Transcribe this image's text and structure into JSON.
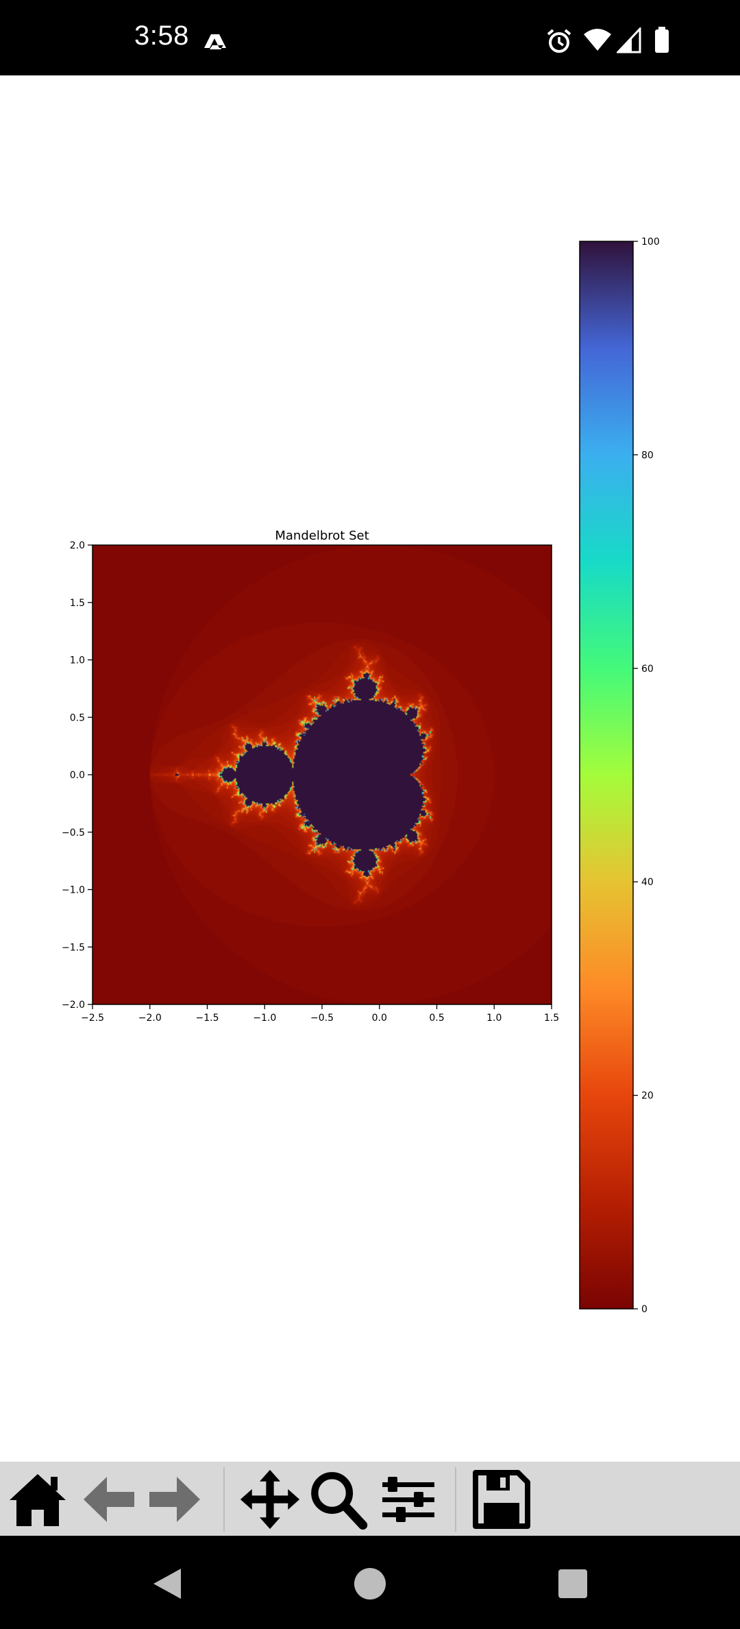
{
  "status_bar": {
    "time": "3:58",
    "icons": [
      "drive-icon",
      "alarm-icon",
      "wifi-icon",
      "signal-icon",
      "battery-icon"
    ]
  },
  "toolbar": {
    "buttons": [
      "home-icon",
      "back-arrow-icon",
      "forward-arrow-icon",
      "pan-move-icon",
      "zoom-icon",
      "configure-subplots-icon",
      "save-icon"
    ]
  },
  "nav_bar": {
    "buttons": [
      "back-triangle-icon",
      "home-circle-icon",
      "recents-square-icon"
    ]
  },
  "chart_data": {
    "type": "heatmap",
    "title": "Mandelbrot Set",
    "xlabel": "",
    "ylabel": "",
    "xlim": [
      -2.5,
      1.5
    ],
    "ylim": [
      -2.0,
      2.0
    ],
    "x_ticks": [
      "−2.5",
      "−2.0",
      "−1.5",
      "−1.0",
      "−0.5",
      "0.0",
      "0.5",
      "1.0",
      "1.5"
    ],
    "y_ticks": [
      "−2.0",
      "−1.5",
      "−1.0",
      "−0.5",
      "0.0",
      "0.5",
      "1.0",
      "1.5",
      "2.0"
    ],
    "x_tick_values": [
      -2.5,
      -2.0,
      -1.5,
      -1.0,
      -0.5,
      0.0,
      0.5,
      1.0,
      1.5
    ],
    "y_tick_values": [
      -2.0,
      -1.5,
      -1.0,
      -0.5,
      0.0,
      0.5,
      1.0,
      1.5,
      2.0
    ],
    "max_iterations": 100,
    "colormap": "turbo",
    "colorbar": {
      "range": [
        0,
        100
      ],
      "ticks": [
        "0",
        "20",
        "40",
        "60",
        "80",
        "100"
      ],
      "tick_values": [
        0,
        20,
        40,
        60,
        80,
        100
      ]
    }
  }
}
